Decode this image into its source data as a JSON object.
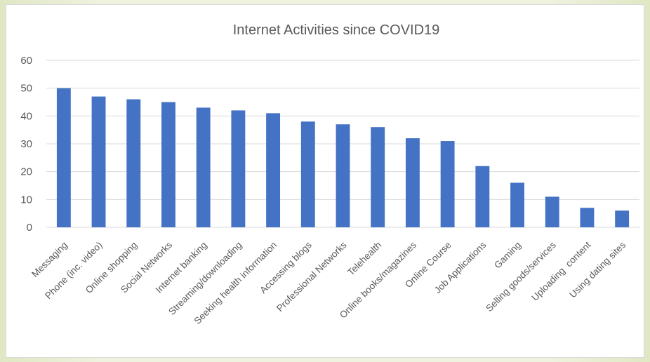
{
  "chart_data": {
    "type": "bar",
    "title": "Internet Activities since COVID19",
    "xlabel": "",
    "ylabel": "",
    "ylim": [
      0,
      60
    ],
    "yticks": [
      0,
      10,
      20,
      30,
      40,
      50,
      60
    ],
    "grid": true,
    "legend": "none",
    "bar_color": "#4472c4",
    "categories": [
      "Messaging",
      "Phone (inc. video)",
      "Online shopping",
      "Social Networks",
      "Internet banking",
      "Streaming/downloading",
      "Seeking health information",
      "Accessing blogs",
      "Professional Networks",
      "Telehealth",
      "Online books/magazines",
      "Online Course",
      "Job Applications",
      "Gaming",
      "Selling goods/services",
      "Uploading  content",
      "Using dating sites"
    ],
    "values": [
      50,
      47,
      46,
      45,
      43,
      42,
      41,
      38,
      37,
      36,
      32,
      31,
      22,
      16,
      11,
      7,
      6
    ]
  },
  "colors": {
    "gridline": "#d9d9d9",
    "axis_text": "#595959",
    "title_text": "#595959"
  }
}
